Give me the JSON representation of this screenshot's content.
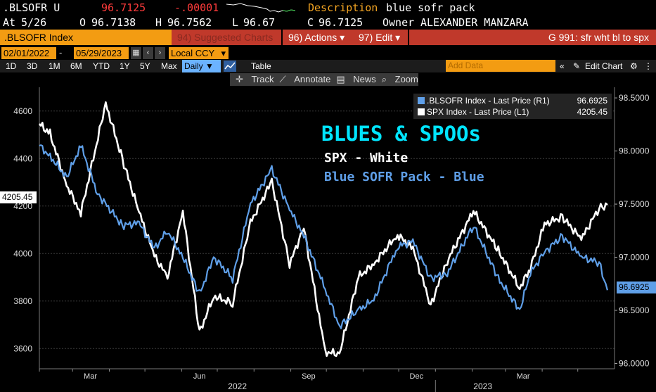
{
  "header": {
    "ticker": ".BLSOFR U",
    "last": "96.7125",
    "change": "-.00001",
    "description_label": "Description",
    "description": "blue sofr pack",
    "at_label": "At",
    "at_date": "5/26",
    "open_label": "O",
    "open": "96.7138",
    "high_label": "H",
    "high": "96.7562",
    "low_label": "L",
    "low": "96.67",
    "close_label": "C",
    "close": "96.7125",
    "owner_label": "Owner",
    "owner": "ALEXANDER MANZARA"
  },
  "toolbar": {
    "security": ".BLSOFR Index",
    "suggested": "94) Suggested Charts",
    "actions": "96) Actions",
    "edit": "97) Edit",
    "command": "G 991: sfr wht bl to spx",
    "start_date": "02/01/2022",
    "end_date": "05/29/2023",
    "currency": "Local CCY",
    "periods": [
      "1D",
      "3D",
      "1M",
      "6M",
      "YTD",
      "1Y",
      "5Y",
      "Max"
    ],
    "frequency": "Daily",
    "table_label": "Table",
    "add_data_placeholder": "Add Data",
    "edit_chart": "Edit Chart",
    "track": "Track",
    "annotate": "Annotate",
    "news": "News",
    "zoom": "Zoom"
  },
  "legend": {
    "s1_label": ".BLSOFR Index - Last Price (R1)",
    "s1_value": "96.6925",
    "s2_label": "SPX Index - Last Price (L1)",
    "s2_value": "4205.45"
  },
  "annotations": {
    "title": "BLUES & SPOOs",
    "line1": "SPX - White",
    "line2": "Blue SOFR Pack - Blue"
  },
  "colors": {
    "background": "#000000",
    "spx": "#ffffff",
    "blsofr": "#5f9fe8",
    "accent_orange": "#f39c12",
    "accent_red": "#c0392b",
    "title_cyan": "#00e5ff"
  },
  "chart_data": {
    "type": "line",
    "x_tick_labels": [
      "Mar",
      "Jun",
      "Sep",
      "Dec",
      "Mar"
    ],
    "x_year_labels": [
      "2022",
      "2023"
    ],
    "left_axis": {
      "ticks": [
        3600,
        3800,
        4000,
        4200,
        4400,
        4600
      ],
      "labels": [
        "3600",
        "3800",
        "4000",
        "4200",
        "4400",
        "4600"
      ],
      "range": [
        3515,
        4700
      ]
    },
    "right_axis": {
      "ticks": [
        96.0,
        96.5,
        97.0,
        97.5,
        98.0,
        98.5
      ],
      "labels": [
        "96.0000",
        "96.5000",
        "97.0000",
        "97.5000",
        "98.0000",
        "98.5000"
      ],
      "range": [
        95.95,
        98.6
      ]
    },
    "grid": true,
    "legend_position": "top-right",
    "last_value_tags": {
      "left": "4205.45",
      "right": "96.6925"
    },
    "series": [
      {
        "name": "SPX Index - Last Price (L1)",
        "axis": "left",
        "points": [
          [
            "2022-02-01",
            4546
          ],
          [
            "2022-02-10",
            4504
          ],
          [
            "2022-02-24",
            4288
          ],
          [
            "2022-03-08",
            4170
          ],
          [
            "2022-03-29",
            4632
          ],
          [
            "2022-04-12",
            4397
          ],
          [
            "2022-04-26",
            4175
          ],
          [
            "2022-05-09",
            3991
          ],
          [
            "2022-05-20",
            3901
          ],
          [
            "2022-06-02",
            4176
          ],
          [
            "2022-06-16",
            3667
          ],
          [
            "2022-06-28",
            3821
          ],
          [
            "2022-07-14",
            3790
          ],
          [
            "2022-07-29",
            4130
          ],
          [
            "2022-08-16",
            4305
          ],
          [
            "2022-08-31",
            3955
          ],
          [
            "2022-09-12",
            4110
          ],
          [
            "2022-09-30",
            3586
          ],
          [
            "2022-10-12",
            3577
          ],
          [
            "2022-10-28",
            3901
          ],
          [
            "2022-11-10",
            3956
          ],
          [
            "2022-11-30",
            4080
          ],
          [
            "2022-12-13",
            4019
          ],
          [
            "2022-12-28",
            3783
          ],
          [
            "2023-01-11",
            3969
          ],
          [
            "2023-02-02",
            4179
          ],
          [
            "2023-02-23",
            4012
          ],
          [
            "2023-03-13",
            3855
          ],
          [
            "2023-03-22",
            3937
          ],
          [
            "2023-04-03",
            4124
          ],
          [
            "2023-04-18",
            4154
          ],
          [
            "2023-05-04",
            4061
          ],
          [
            "2023-05-19",
            4192
          ],
          [
            "2023-05-26",
            4205
          ]
        ]
      },
      {
        "name": ".BLSOFR Index - Last Price (R1)",
        "axis": "right",
        "points": [
          [
            "2022-02-01",
            98.05
          ],
          [
            "2022-02-10",
            97.95
          ],
          [
            "2022-02-24",
            97.75
          ],
          [
            "2022-03-08",
            98.05
          ],
          [
            "2022-03-22",
            97.6
          ],
          [
            "2022-04-12",
            97.3
          ],
          [
            "2022-04-26",
            97.32
          ],
          [
            "2022-05-09",
            97.08
          ],
          [
            "2022-05-20",
            97.25
          ],
          [
            "2022-06-02",
            97.0
          ],
          [
            "2022-06-16",
            96.65
          ],
          [
            "2022-06-28",
            97.0
          ],
          [
            "2022-07-14",
            96.8
          ],
          [
            "2022-07-29",
            97.5
          ],
          [
            "2022-08-16",
            97.83
          ],
          [
            "2022-08-31",
            97.45
          ],
          [
            "2022-09-12",
            97.2
          ],
          [
            "2022-09-30",
            96.7
          ],
          [
            "2022-10-12",
            96.35
          ],
          [
            "2022-10-28",
            96.5
          ],
          [
            "2022-11-10",
            96.6
          ],
          [
            "2022-11-30",
            97.1
          ],
          [
            "2022-12-13",
            97.15
          ],
          [
            "2022-12-28",
            96.8
          ],
          [
            "2023-01-11",
            96.85
          ],
          [
            "2023-02-02",
            97.3
          ],
          [
            "2023-02-23",
            96.8
          ],
          [
            "2023-03-13",
            96.5
          ],
          [
            "2023-03-22",
            96.85
          ],
          [
            "2023-04-03",
            97.05
          ],
          [
            "2023-04-18",
            97.2
          ],
          [
            "2023-05-04",
            97.0
          ],
          [
            "2023-05-19",
            96.95
          ],
          [
            "2023-05-26",
            96.69
          ]
        ]
      }
    ]
  }
}
